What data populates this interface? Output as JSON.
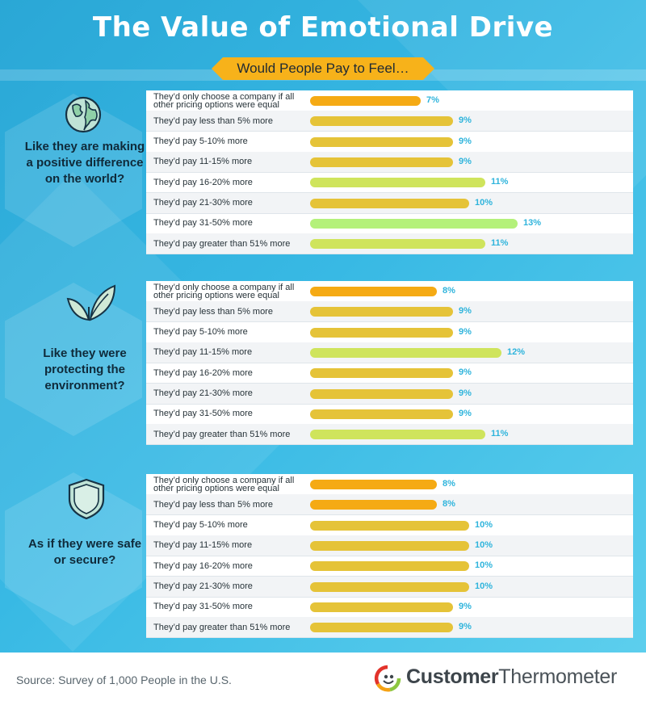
{
  "title": "The Value of Emotional Drive",
  "subtitle": "Would People Pay to Feel…",
  "colors": {
    "orange": "#f5aa14",
    "yellow": "#e5c338",
    "lime": "#cfe45c",
    "green": "#b4f17a",
    "value": "#2fb4dc"
  },
  "icons": [
    "globe-icon",
    "leaf-icon",
    "shield-icon"
  ],
  "chart_data": [
    {
      "type": "bar",
      "title": "Like they are making a positive difference on the world?",
      "categories": [
        "They’d only choose a company if all other pricing options were equal",
        "They’d pay less than 5% more",
        "They’d pay 5-10% more",
        "They’d pay 11-15% more",
        "They’d pay 16-20% more",
        "They’d pay 21-30% more",
        "They’d pay 31-50% more",
        "They’d pay greater than 51% more"
      ],
      "values": [
        7,
        9,
        9,
        9,
        11,
        10,
        13,
        11
      ],
      "labels": [
        "7%",
        "9%",
        "9%",
        "9%",
        "11%",
        "10%",
        "13%",
        "11%"
      ]
    },
    {
      "type": "bar",
      "title": "Like they were protecting the environment?",
      "categories": [
        "They’d only choose a company if all other pricing options were equal",
        "They’d pay less than 5% more",
        "They’d pay 5-10% more",
        "They’d pay 11-15% more",
        "They’d pay 16-20% more",
        "They’d pay 21-30% more",
        "They’d pay 31-50% more",
        "They’d pay greater than 51% more"
      ],
      "values": [
        8,
        9,
        9,
        12,
        9,
        9,
        9,
        11
      ],
      "labels": [
        "8%",
        "9%",
        "9%",
        "12%",
        "9%",
        "9%",
        "9%",
        "11%"
      ]
    },
    {
      "type": "bar",
      "title": "As if they were safe or secure?",
      "categories": [
        "They’d only choose a company if all other pricing options were equal",
        "They’d pay less than 5% more",
        "They’d pay 5-10% more",
        "They’d pay 11-15% more",
        "They’d pay 16-20% more",
        "They’d pay 21-30% more",
        "They’d pay 31-50% more",
        "They’d pay greater than 51% more"
      ],
      "values": [
        8,
        8,
        10,
        10,
        10,
        10,
        9,
        9
      ],
      "labels": [
        "8%",
        "8%",
        "10%",
        "10%",
        "10%",
        "10%",
        "9%",
        "9%"
      ]
    }
  ],
  "footer": {
    "source": "Source: Survey of 1,000 People in the U.S.",
    "brand_a": "Customer",
    "brand_b": "Thermometer"
  }
}
